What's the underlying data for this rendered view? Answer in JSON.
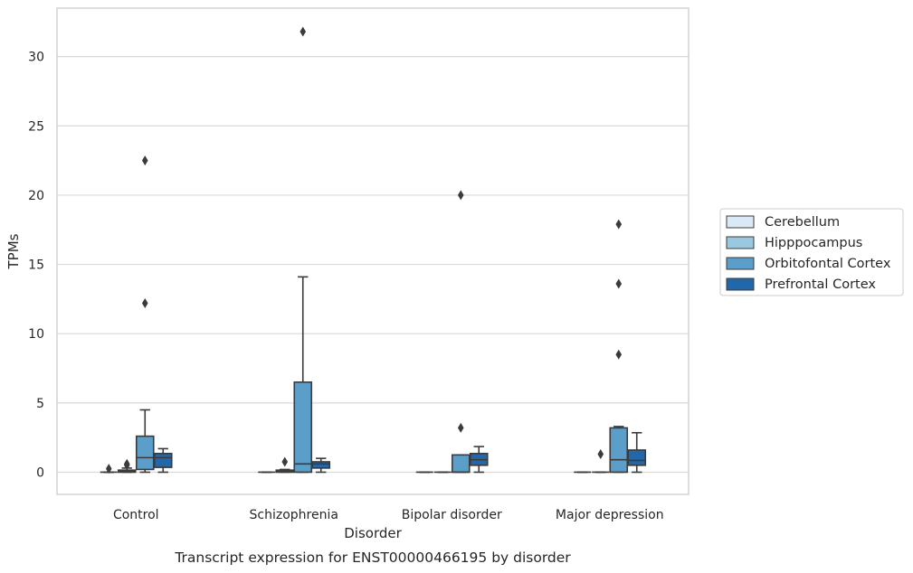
{
  "chart_data": {
    "type": "box",
    "title": "",
    "caption": "Transcript expression for ENST00000466195 by disorder",
    "xlabel": "Disorder",
    "ylabel": "TPMs",
    "ylim": [
      -1.6,
      33.5
    ],
    "yticks": [
      "0",
      "5",
      "10",
      "15",
      "20",
      "25",
      "30"
    ],
    "ytick_values": [
      0,
      5,
      10,
      15,
      20,
      25,
      30
    ],
    "grid": "horizontal",
    "legend_position": "right",
    "categories": [
      "Control",
      "Schizophrenia",
      "Bipolar disorder",
      "Major depression"
    ],
    "series": [
      {
        "name": "Cerebellum",
        "color": "#dbe9f6",
        "boxes": [
          {
            "whislo": 0,
            "q1": 0,
            "med": 0,
            "q3": 0,
            "whishi": 0,
            "fliers": [
              0.25
            ]
          },
          {
            "whislo": 0,
            "q1": 0,
            "med": 0,
            "q3": 0,
            "whishi": 0,
            "fliers": []
          },
          {
            "whislo": 0,
            "q1": 0,
            "med": 0,
            "q3": 0,
            "whishi": 0,
            "fliers": []
          },
          {
            "whislo": 0,
            "q1": 0,
            "med": 0,
            "q3": 0,
            "whishi": 0,
            "fliers": []
          }
        ]
      },
      {
        "name": "Hipppocampus",
        "color": "#9ac8e0",
        "boxes": [
          {
            "whislo": 0,
            "q1": 0,
            "med": 0.05,
            "q3": 0.15,
            "whishi": 0.3,
            "fliers": [
              0.5,
              0.6
            ]
          },
          {
            "whislo": 0,
            "q1": 0,
            "med": 0.05,
            "q3": 0.15,
            "whishi": 0.2,
            "fliers": [
              0.75
            ]
          },
          {
            "whislo": 0,
            "q1": 0,
            "med": 0,
            "q3": 0,
            "whishi": 0,
            "fliers": []
          },
          {
            "whislo": 0,
            "q1": 0,
            "med": 0,
            "q3": 0,
            "whishi": 0,
            "fliers": [
              1.3
            ]
          }
        ]
      },
      {
        "name": "Orbitofontal Cortex",
        "color": "#5a9ec9",
        "boxes": [
          {
            "whislo": 0,
            "q1": 0.2,
            "med": 1.05,
            "q3": 2.6,
            "whishi": 4.5,
            "fliers": [
              12.2,
              22.5
            ]
          },
          {
            "whislo": 0,
            "q1": 0,
            "med": 0.6,
            "q3": 6.5,
            "whishi": 14.1,
            "fliers": [
              31.8
            ]
          },
          {
            "whislo": 0,
            "q1": 0,
            "med": 0,
            "q3": 1.25,
            "whishi": 1.25,
            "fliers": [
              3.2,
              20.0
            ]
          },
          {
            "whislo": 0,
            "q1": 0,
            "med": 0.9,
            "q3": 3.2,
            "whishi": 3.3,
            "fliers": [
              8.5,
              13.6,
              17.9
            ]
          }
        ]
      },
      {
        "name": "Prefrontal Cortex",
        "color": "#2367ab",
        "boxes": [
          {
            "whislo": 0,
            "q1": 0.35,
            "med": 1.05,
            "q3": 1.35,
            "whishi": 1.7,
            "fliers": []
          },
          {
            "whislo": 0,
            "q1": 0.3,
            "med": 0.6,
            "q3": 0.75,
            "whishi": 1.0,
            "fliers": []
          },
          {
            "whislo": 0,
            "q1": 0.5,
            "med": 0.9,
            "q3": 1.35,
            "whishi": 1.85,
            "fliers": []
          },
          {
            "whislo": 0,
            "q1": 0.5,
            "med": 0.85,
            "q3": 1.6,
            "whishi": 2.85,
            "fliers": []
          }
        ]
      }
    ]
  }
}
